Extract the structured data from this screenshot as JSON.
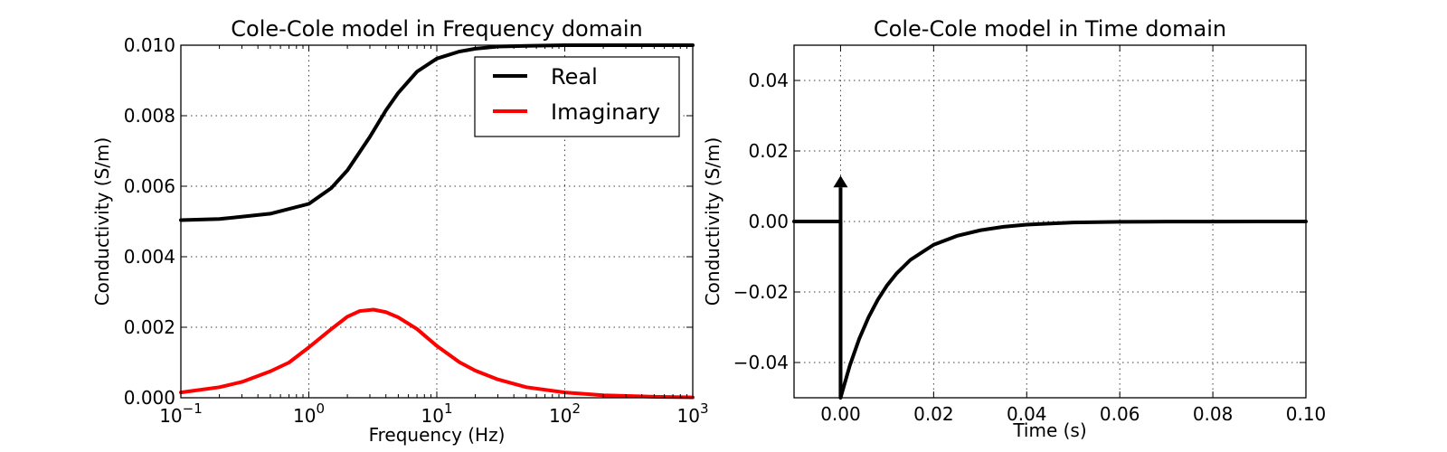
{
  "chart_data": [
    {
      "type": "line",
      "title": "Cole-Cole model in Frequency domain",
      "xlabel": "Frequency (Hz)",
      "ylabel": "Conductivity (S/m)",
      "xscale": "log",
      "xlim": [
        0.1,
        1000
      ],
      "ylim": [
        0.0,
        0.01
      ],
      "xticks": [
        {
          "value": 0.1,
          "base": "10",
          "exp": "−1"
        },
        {
          "value": 1,
          "base": "10",
          "exp": "0"
        },
        {
          "value": 10,
          "base": "10",
          "exp": "1"
        },
        {
          "value": 100,
          "base": "10",
          "exp": "2"
        },
        {
          "value": 1000,
          "base": "10",
          "exp": "3"
        }
      ],
      "yticks": [
        {
          "value": 0.0,
          "label": "0.000"
        },
        {
          "value": 0.002,
          "label": "0.002"
        },
        {
          "value": 0.004,
          "label": "0.004"
        },
        {
          "value": 0.006,
          "label": "0.006"
        },
        {
          "value": 0.008,
          "label": "0.008"
        },
        {
          "value": 0.01,
          "label": "0.010"
        }
      ],
      "grid": true,
      "legend": {
        "position": "top-right"
      },
      "series": [
        {
          "name": "Real",
          "color": "#000000",
          "x": [
            0.1,
            0.2,
            0.5,
            1,
            1.5,
            2,
            3,
            4,
            5,
            7,
            10,
            15,
            20,
            30,
            50,
            100,
            1000
          ],
          "y": [
            0.00504,
            0.00507,
            0.00522,
            0.0055,
            0.00595,
            0.00645,
            0.0074,
            0.00815,
            0.00865,
            0.00925,
            0.00962,
            0.00982,
            0.0099,
            0.00996,
            0.00998,
            0.01,
            0.01
          ]
        },
        {
          "name": "Imaginary",
          "color": "#ff0000",
          "x": [
            0.1,
            0.2,
            0.3,
            0.5,
            0.7,
            1,
            1.5,
            2,
            2.5,
            3.2,
            4,
            5,
            7,
            10,
            15,
            20,
            30,
            50,
            100,
            200,
            500,
            1000
          ],
          "y": [
            0.00015,
            0.0003,
            0.00045,
            0.00075,
            0.001,
            0.00143,
            0.00195,
            0.0023,
            0.00246,
            0.0025,
            0.00243,
            0.00228,
            0.00195,
            0.00147,
            0.00101,
            0.00077,
            0.00052,
            0.0003,
            0.00015,
            7e-05,
            3e-05,
            1e-05
          ]
        }
      ]
    },
    {
      "type": "line",
      "title": "Cole-Cole model in Time domain",
      "xlabel": "Time (s)",
      "ylabel": "Conductivity (S/m)",
      "xlim": [
        -0.01,
        0.1
      ],
      "ylim": [
        -0.05,
        0.05
      ],
      "xticks": [
        {
          "value": 0.0,
          "label": "0.00"
        },
        {
          "value": 0.02,
          "label": "0.02"
        },
        {
          "value": 0.04,
          "label": "0.04"
        },
        {
          "value": 0.06,
          "label": "0.06"
        },
        {
          "value": 0.08,
          "label": "0.08"
        },
        {
          "value": 0.1,
          "label": "0.10"
        }
      ],
      "yticks": [
        {
          "value": -0.04,
          "label": "−0.04"
        },
        {
          "value": -0.02,
          "label": "−0.02"
        },
        {
          "value": 0.0,
          "label": "0.00"
        },
        {
          "value": 0.02,
          "label": "0.02"
        },
        {
          "value": 0.04,
          "label": "0.04"
        }
      ],
      "grid": true,
      "impulse": {
        "x": 0.0,
        "y_tip": 0.013,
        "color": "#000000"
      },
      "series": [
        {
          "color": "#000000",
          "x": [
            -0.01,
            -0.005,
            0.0,
            0.0,
            0.002,
            0.004,
            0.006,
            0.008,
            0.01,
            0.012,
            0.015,
            0.02,
            0.025,
            0.03,
            0.035,
            0.04,
            0.05,
            0.06,
            0.07,
            0.08,
            0.09,
            0.1
          ],
          "y": [
            0.0,
            0.0,
            0.0,
            -0.05,
            -0.0408,
            -0.0333,
            -0.0272,
            -0.0222,
            -0.0181,
            -0.0148,
            -0.0109,
            -0.0066,
            -0.0041,
            -0.0025,
            -0.0015,
            -0.0009,
            -0.0003,
            -0.0001,
            -4e-05,
            -2e-05,
            0.0,
            0.0
          ]
        }
      ]
    }
  ]
}
